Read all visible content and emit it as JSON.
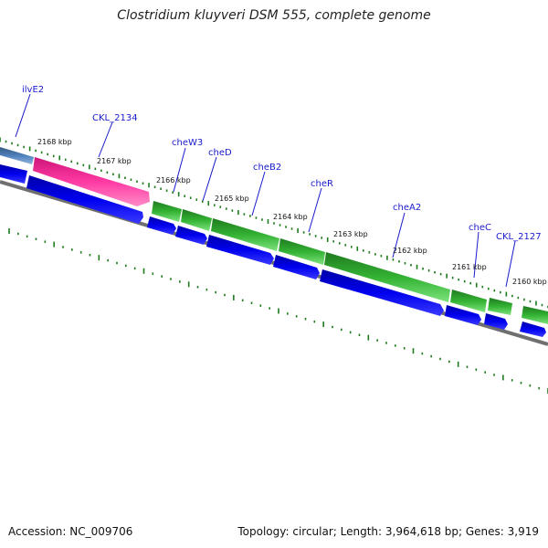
{
  "title": "Clostridium kluyveri DSM 555, complete genome",
  "footer": {
    "accession": "Accession: NC_009706",
    "topology": "Topology: circular; Length: 3,964,618 bp; Genes: 3,919"
  },
  "colors": {
    "cds": "#0000ee",
    "che_gene": "#2f9d2f",
    "magenta_gene": "#ff1e96",
    "steel_gene": "#4f81bd",
    "tick": "#1d7a1d",
    "backbone": "#777777",
    "label": "#1a1acc"
  },
  "gene_labels": [
    {
      "text": "ilvE2"
    },
    {
      "text": "CKL_2134"
    },
    {
      "text": "cheW3"
    },
    {
      "text": "cheD"
    },
    {
      "text": "cheB2"
    },
    {
      "text": "cheR"
    },
    {
      "text": "cheA2"
    },
    {
      "text": "cheC"
    },
    {
      "text": "CKL_2127"
    }
  ],
  "kbp_labels": [
    "2168 kbp",
    "2167 kbp",
    "2166 kbp",
    "2165 kbp",
    "2164 kbp",
    "2163 kbp",
    "2162 kbp",
    "2161 kbp",
    "2160 kbp"
  ]
}
